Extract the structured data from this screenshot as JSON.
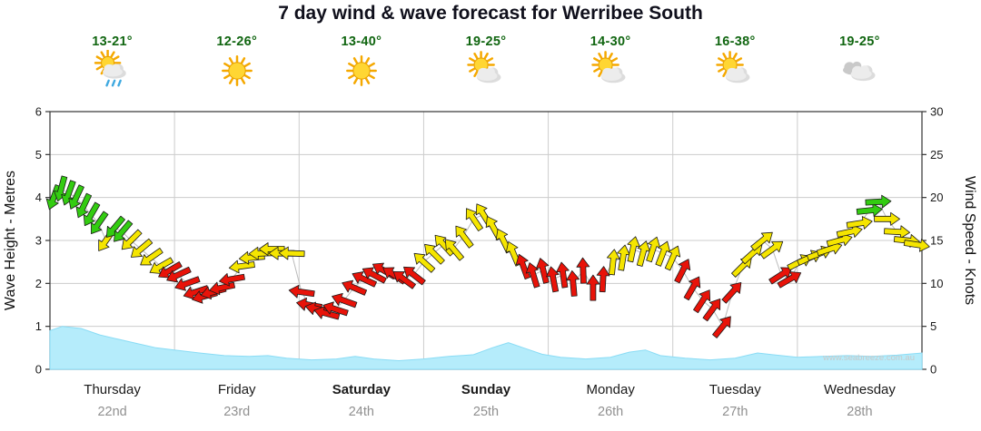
{
  "title": "7 day wind & wave forecast for Werribee South",
  "header": {
    "days": [
      {
        "temp": "13-21°",
        "icon": "sun-cloud-rain"
      },
      {
        "temp": "12-26°",
        "icon": "sun"
      },
      {
        "temp": "13-40°",
        "icon": "sun"
      },
      {
        "temp": "19-25°",
        "icon": "sun-cloud"
      },
      {
        "temp": "14-30°",
        "icon": "sun-cloud"
      },
      {
        "temp": "16-38°",
        "icon": "sun-cloud"
      },
      {
        "temp": "19-25°",
        "icon": "cloud"
      }
    ]
  },
  "colors": {
    "temperature": "#116611",
    "wind_green": "#33CC11",
    "wind_yellow": "#F5E500",
    "wind_red": "#E81309",
    "wave_fill": "#B5ECFB",
    "wave_edge": "#8ADCF5",
    "grid": "#CCCCCC",
    "frame": "#333333",
    "day_label": "#1a1a1a",
    "date_label": "#909090",
    "watermark": "#C8C8C8"
  },
  "chart_data": {
    "type": "line",
    "title": "7 day wind & wave forecast for Werribee South",
    "watermark": "www.seabreeze.com.au",
    "x_days": [
      {
        "label": "Thursday",
        "date": "22nd",
        "bold": false
      },
      {
        "label": "Friday",
        "date": "23rd",
        "bold": false
      },
      {
        "label": "Saturday",
        "date": "24th",
        "bold": true
      },
      {
        "label": "Sunday",
        "date": "25th",
        "bold": true
      },
      {
        "label": "Monday",
        "date": "26th",
        "bold": false
      },
      {
        "label": "Tuesday",
        "date": "27th",
        "bold": false
      },
      {
        "label": "Wednesday",
        "date": "28th",
        "bold": false
      }
    ],
    "axes": {
      "left": {
        "label": "Wave Height - Metres",
        "range": [
          0,
          6
        ],
        "ticks": [
          0,
          1,
          2,
          3,
          4,
          5,
          6
        ]
      },
      "right": {
        "label": "Wind Speed - Knots",
        "range": [
          0,
          30
        ],
        "ticks": [
          0,
          5,
          10,
          15,
          20,
          25,
          30
        ]
      }
    },
    "wind_series": {
      "name": "Wind speed (knots); color g=offshore green, y=cross yellow, r=onshore red; dir=arrow rotation deg",
      "points": [
        [
          0.03,
          20,
          "g",
          200
        ],
        [
          0.09,
          21,
          "g",
          195
        ],
        [
          0.15,
          20.5,
          "g",
          200
        ],
        [
          0.21,
          20,
          "g",
          205
        ],
        [
          0.27,
          19,
          "g",
          205
        ],
        [
          0.33,
          18,
          "g",
          210
        ],
        [
          0.39,
          17,
          "g",
          215
        ],
        [
          0.45,
          15,
          "y",
          215
        ],
        [
          0.52,
          16.5,
          "g",
          220
        ],
        [
          0.58,
          16,
          "g",
          220
        ],
        [
          0.65,
          15,
          "y",
          225
        ],
        [
          0.73,
          14,
          "y",
          230
        ],
        [
          0.81,
          13,
          "y",
          235
        ],
        [
          0.89,
          12,
          "y",
          240
        ],
        [
          0.96,
          11.5,
          "r",
          240
        ],
        [
          1.03,
          11,
          "r",
          245
        ],
        [
          1.1,
          10,
          "r",
          250
        ],
        [
          1.17,
          9,
          "r",
          252
        ],
        [
          1.24,
          8.5,
          "r",
          255
        ],
        [
          1.31,
          9,
          "r",
          255
        ],
        [
          1.38,
          9.5,
          "r",
          258
        ],
        [
          1.46,
          10.5,
          "r",
          260
        ],
        [
          1.54,
          12,
          "y",
          262
        ],
        [
          1.62,
          13,
          "y",
          265
        ],
        [
          1.7,
          13.5,
          "y",
          268
        ],
        [
          1.78,
          14,
          "y",
          270
        ],
        [
          1.86,
          13.5,
          "y",
          270
        ],
        [
          1.94,
          13.5,
          "y",
          272
        ],
        [
          2.02,
          9,
          "r",
          278
        ],
        [
          2.08,
          7.5,
          "r",
          280
        ],
        [
          2.15,
          7,
          "r",
          283
        ],
        [
          2.22,
          6.5,
          "r",
          285
        ],
        [
          2.29,
          7,
          "r",
          288
        ],
        [
          2.36,
          8,
          "r",
          290
        ],
        [
          2.44,
          9.5,
          "r",
          293
        ],
        [
          2.52,
          10.5,
          "r",
          295
        ],
        [
          2.6,
          11,
          "r",
          298
        ],
        [
          2.68,
          11.5,
          "r",
          300
        ],
        [
          2.76,
          11,
          "r",
          303
        ],
        [
          2.84,
          10.5,
          "r",
          306
        ],
        [
          2.92,
          11,
          "r",
          308
        ],
        [
          3.0,
          12.5,
          "y",
          312
        ],
        [
          3.08,
          13.5,
          "y",
          315
        ],
        [
          3.16,
          14.5,
          "y",
          318
        ],
        [
          3.24,
          14,
          "y",
          320
        ],
        [
          3.32,
          15.5,
          "y",
          323
        ],
        [
          3.4,
          17.5,
          "y",
          326
        ],
        [
          3.48,
          18,
          "y",
          328
        ],
        [
          3.56,
          16.5,
          "y",
          331
        ],
        [
          3.64,
          15,
          "y",
          334
        ],
        [
          3.72,
          13.5,
          "y",
          337
        ],
        [
          3.8,
          12,
          "r",
          340
        ],
        [
          3.88,
          11,
          "r",
          343
        ],
        [
          3.96,
          11.5,
          "r",
          346
        ],
        [
          4.04,
          10.5,
          "r",
          349
        ],
        [
          4.12,
          11,
          "r",
          352
        ],
        [
          4.2,
          10,
          "r",
          355
        ],
        [
          4.28,
          11.5,
          "r",
          358
        ],
        [
          4.36,
          9.5,
          "r",
          0
        ],
        [
          4.44,
          10.5,
          "r",
          3
        ],
        [
          4.52,
          12.5,
          "y",
          6
        ],
        [
          4.6,
          13,
          "y",
          9
        ],
        [
          4.68,
          14,
          "y",
          12
        ],
        [
          4.76,
          13.5,
          "y",
          15
        ],
        [
          4.84,
          14,
          "y",
          18
        ],
        [
          4.92,
          13.5,
          "y",
          21
        ],
        [
          5.0,
          13,
          "y",
          24
        ],
        [
          5.08,
          11.5,
          "r",
          27
        ],
        [
          5.16,
          9.5,
          "r",
          30
        ],
        [
          5.24,
          8,
          "r",
          33
        ],
        [
          5.32,
          7,
          "r",
          36
        ],
        [
          5.4,
          5,
          "r",
          39
        ],
        [
          5.48,
          9,
          "r",
          42
        ],
        [
          5.56,
          12,
          "y",
          45
        ],
        [
          5.64,
          13.5,
          "y",
          48
        ],
        [
          5.72,
          15,
          "y",
          51
        ],
        [
          5.8,
          14,
          "y",
          54
        ],
        [
          5.87,
          11,
          "r",
          57
        ],
        [
          5.94,
          10.5,
          "r",
          60
        ],
        [
          6.02,
          12.5,
          "y",
          63
        ],
        [
          6.1,
          13,
          "y",
          66
        ],
        [
          6.18,
          13.5,
          "y",
          69
        ],
        [
          6.26,
          14,
          "y",
          72
        ],
        [
          6.34,
          15,
          "y",
          75
        ],
        [
          6.42,
          16,
          "y",
          78
        ],
        [
          6.5,
          17,
          "y",
          81
        ],
        [
          6.58,
          18.5,
          "g",
          84
        ],
        [
          6.65,
          19.5,
          "g",
          87
        ],
        [
          6.72,
          17.5,
          "y",
          90
        ],
        [
          6.8,
          16,
          "y",
          93
        ],
        [
          6.88,
          15,
          "y",
          96
        ],
        [
          6.96,
          14.5,
          "y",
          99
        ]
      ]
    },
    "wave_series": {
      "name": "Wave height (metres)",
      "points": [
        [
          0,
          0.9
        ],
        [
          0.1,
          1.0
        ],
        [
          0.25,
          0.95
        ],
        [
          0.4,
          0.8
        ],
        [
          0.55,
          0.7
        ],
        [
          0.7,
          0.6
        ],
        [
          0.85,
          0.5
        ],
        [
          1.0,
          0.45
        ],
        [
          1.2,
          0.38
        ],
        [
          1.4,
          0.32
        ],
        [
          1.6,
          0.3
        ],
        [
          1.75,
          0.32
        ],
        [
          1.9,
          0.26
        ],
        [
          2.1,
          0.22
        ],
        [
          2.3,
          0.24
        ],
        [
          2.45,
          0.3
        ],
        [
          2.6,
          0.24
        ],
        [
          2.8,
          0.2
        ],
        [
          3.0,
          0.24
        ],
        [
          3.2,
          0.3
        ],
        [
          3.4,
          0.34
        ],
        [
          3.55,
          0.5
        ],
        [
          3.68,
          0.62
        ],
        [
          3.8,
          0.5
        ],
        [
          3.95,
          0.35
        ],
        [
          4.1,
          0.28
        ],
        [
          4.3,
          0.24
        ],
        [
          4.5,
          0.28
        ],
        [
          4.65,
          0.4
        ],
        [
          4.78,
          0.45
        ],
        [
          4.9,
          0.32
        ],
        [
          5.1,
          0.26
        ],
        [
          5.3,
          0.22
        ],
        [
          5.5,
          0.26
        ],
        [
          5.68,
          0.38
        ],
        [
          5.8,
          0.34
        ],
        [
          6.0,
          0.28
        ],
        [
          6.2,
          0.3
        ],
        [
          6.4,
          0.32
        ],
        [
          6.6,
          0.3
        ],
        [
          6.8,
          0.33
        ],
        [
          7.0,
          0.38
        ]
      ]
    }
  }
}
